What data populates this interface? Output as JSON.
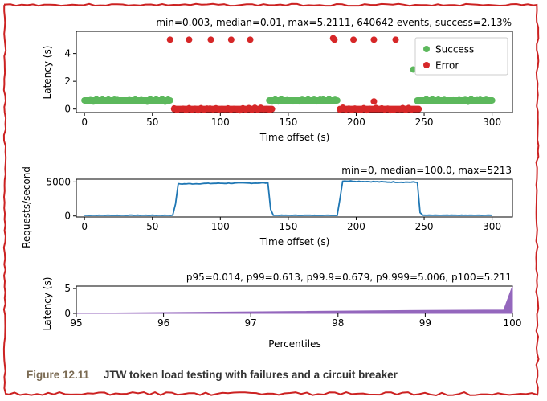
{
  "caption": {
    "label": "Figure 12.11",
    "text": "JTW token load testing with failures and a circuit breaker"
  },
  "colors": {
    "success": "#5cb85c",
    "error": "#d62728",
    "rps_line": "#1f77b4",
    "percentile_fill": "#9467bd",
    "frame_border": "#cc2222"
  },
  "chart_data": [
    {
      "type": "scatter",
      "title": "min=0.003, median=0.01, max=5.2111, 640642 events, success=2.13%",
      "xlabel": "Time offset (s)",
      "ylabel": "Latency (s)",
      "xlim": [
        -6,
        315
      ],
      "ylim": [
        -0.25,
        5.6
      ],
      "xticks": [
        "0",
        "50",
        "100",
        "150",
        "200",
        "250",
        "300"
      ],
      "yticks": [
        "0",
        "2",
        "4"
      ],
      "legend_position": "top-right",
      "series": [
        {
          "name": "Success",
          "color": "#5cb85c",
          "segments": [
            {
              "x_start": 0,
              "x_end": 63,
              "y": 0.62
            },
            {
              "x_start": 136,
              "x_end": 186,
              "y": 0.62
            },
            {
              "x_start": 245,
              "x_end": 300,
              "y": 0.62
            }
          ],
          "points": [
            {
              "x": 242,
              "y": 2.85
            }
          ]
        },
        {
          "name": "Error",
          "color": "#d62728",
          "segments": [
            {
              "x_start": 66,
              "x_end": 138,
              "y": 0.0
            },
            {
              "x_start": 188,
              "x_end": 246,
              "y": 0.0
            }
          ],
          "points": [
            {
              "x": 63,
              "y": 5.0
            },
            {
              "x": 77,
              "y": 5.0
            },
            {
              "x": 93,
              "y": 5.0
            },
            {
              "x": 108,
              "y": 5.0
            },
            {
              "x": 122,
              "y": 5.0
            },
            {
              "x": 183,
              "y": 5.1
            },
            {
              "x": 184,
              "y": 5.0
            },
            {
              "x": 198,
              "y": 5.0
            },
            {
              "x": 213,
              "y": 5.0
            },
            {
              "x": 229,
              "y": 5.0
            },
            {
              "x": 213,
              "y": 0.55
            }
          ]
        }
      ]
    },
    {
      "type": "line",
      "title": "min=0, median=100.0, max=5213",
      "xlabel": "Time offset (s)",
      "ylabel": "Requests/second",
      "xlim": [
        -6,
        315
      ],
      "ylim": [
        -150,
        5400
      ],
      "xticks": [
        "0",
        "50",
        "100",
        "150",
        "200",
        "250",
        "300"
      ],
      "yticks": [
        "0",
        "5000"
      ],
      "series": [
        {
          "name": "",
          "color": "#1f77b4",
          "x": [
            0,
            65,
            67,
            69,
            100,
            135,
            137,
            139,
            186,
            188,
            190,
            220,
            245,
            247,
            249,
            300
          ],
          "y": [
            100,
            100,
            1800,
            4700,
            4800,
            4850,
            1000,
            100,
            100,
            2500,
            5150,
            5000,
            4950,
            500,
            100,
            100
          ]
        }
      ]
    },
    {
      "type": "area",
      "title": "p95=0.014, p99=0.613, p99.9=0.679, p9.999=5.006, p100=5.211",
      "xlabel": "Percentiles",
      "ylabel": "Latency (s)",
      "xlim": [
        95,
        100
      ],
      "ylim": [
        0,
        5.5
      ],
      "xticks": [
        "95",
        "96",
        "97",
        "98",
        "99",
        "100"
      ],
      "yticks": [
        "0",
        "5"
      ],
      "series": [
        {
          "name": "",
          "color": "#9467bd",
          "x": [
            95,
            97,
            99,
            99.9,
            99.99,
            100
          ],
          "y": [
            0.014,
            0.3,
            0.613,
            0.679,
            5.006,
            5.211
          ]
        }
      ]
    }
  ]
}
